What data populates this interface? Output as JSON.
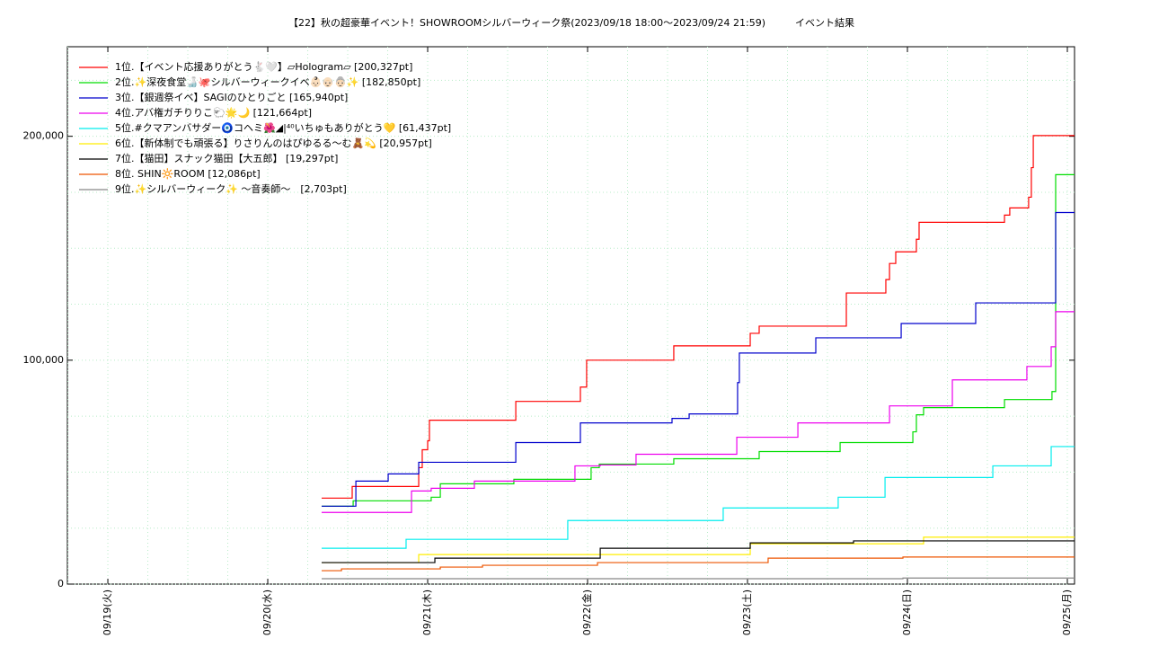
{
  "chart_data": {
    "type": "step",
    "title": "【22】秋の超豪華イベント！SHOWROOMシルバーウィーク祭(2023/09/18 18:00～2023/09/24 21:59)　　　イベント結果",
    "xlim": [
      -0.253,
      6.045
    ],
    "xticks": [
      {
        "value": 0,
        "label": "09/19(火)"
      },
      {
        "value": 1,
        "label": "09/20(水)"
      },
      {
        "value": 2,
        "label": "09/21(木)"
      },
      {
        "value": 3,
        "label": "09/22(金)"
      },
      {
        "value": 4,
        "label": "09/23(土)"
      },
      {
        "value": 5,
        "label": "09/24(日)"
      },
      {
        "value": 6,
        "label": "09/25(月)"
      }
    ],
    "minor_xticks": [
      -0.25,
      0.25,
      0.5,
      0.75,
      1.25,
      1.5,
      1.75,
      2.25,
      2.5,
      2.75,
      3.25,
      3.5,
      3.75,
      4.25,
      4.5,
      4.75,
      5.25,
      5.5,
      5.75
    ],
    "ylim": [
      0,
      240000
    ],
    "yticks": [
      0,
      {
        "value": 100000,
        "label": "100,000"
      },
      {
        "value": 200000,
        "label": "200,000"
      }
    ],
    "minor_yticks": [
      25000,
      50000,
      75000,
      125000,
      150000,
      175000,
      225000
    ],
    "grid": true,
    "legend": "upper left",
    "series": [
      {
        "name": "1位.【イベント応援ありがとう🐇🤍】▱Hologram▱ [200,327pt]",
        "color": "#ff0000",
        "x": [
          1.337,
          1.528,
          1.944,
          1.966,
          2.0,
          2.011,
          2.551,
          2.955,
          2.994,
          3.539,
          4.017,
          4.073,
          4.618,
          4.865,
          4.888,
          4.927,
          5.056,
          5.073,
          5.607,
          5.64,
          5.758,
          5.775,
          5.787
        ],
        "values": [
          38400,
          43600,
          52000,
          60000,
          64000,
          73200,
          81600,
          88000,
          100000,
          106400,
          112000,
          115200,
          130000,
          136000,
          143200,
          148400,
          154000,
          161600,
          164800,
          168000,
          172800,
          186000,
          200327
        ]
      },
      {
        "name": "2位.✨深夜食堂🍶🐙シルバーウィークイベ👶🏻👴🏻👵🏻✨ [182,850pt]",
        "color": "#00dd00",
        "x": [
          1.337,
          1.534,
          2.022,
          2.079,
          2.539,
          3.022,
          3.073,
          3.539,
          4.073,
          4.579,
          5.034,
          5.056,
          5.101,
          5.607,
          5.904,
          5.927
        ],
        "values": [
          34800,
          37200,
          38800,
          44800,
          46800,
          52000,
          53600,
          56000,
          59200,
          63200,
          68000,
          75600,
          78800,
          82400,
          86000,
          182850
        ]
      },
      {
        "name": "3位.【銀週祭イベ】SAGIのひとりごと [165,940pt]",
        "color": "#0000cc",
        "x": [
          1.337,
          1.551,
          1.753,
          1.944,
          2.551,
          2.955,
          3.528,
          3.635,
          3.938,
          3.949,
          4.427,
          4.961,
          5.427,
          5.927
        ],
        "values": [
          34800,
          46000,
          49200,
          54400,
          63200,
          72000,
          74000,
          76000,
          90000,
          103200,
          110000,
          116400,
          125600,
          165940
        ]
      },
      {
        "name": "4位.アバ権ガチりりこ🐑🌟🌙 [121,664pt]",
        "color": "#ee00ee",
        "x": [
          1.337,
          1.899,
          2.022,
          2.292,
          2.921,
          3.079,
          3.303,
          3.933,
          4.315,
          4.888,
          5.281,
          5.747,
          5.899,
          5.927
        ],
        "values": [
          32000,
          41600,
          42800,
          46000,
          52800,
          53200,
          58000,
          65600,
          72000,
          79600,
          91200,
          97200,
          106000,
          121664
        ]
      },
      {
        "name": "5位.#クマアンバサダー🧿コヘミ🌺◢|⁴⁰いちゅもありがとう💛 [61,437pt]",
        "color": "#00eeee",
        "x": [
          1.337,
          1.865,
          2.876,
          3.848,
          4.567,
          4.86,
          5.534,
          5.899
        ],
        "values": [
          16000,
          20000,
          28400,
          34000,
          38800,
          47600,
          52800,
          61437
        ]
      },
      {
        "name": "6位.【新体制でも頑張る】りさりんのはぴゆるる〜む🧸💫 [20,957pt]",
        "color": "#ffee00",
        "x": [
          1.337,
          1.944,
          4.017,
          5.101
        ],
        "values": [
          9600,
          13200,
          18000,
          20957
        ]
      },
      {
        "name": "7位.【猫田】スナック猫田【大五郎】 [19,297pt]",
        "color": "#000000",
        "x": [
          1.337,
          2.045,
          3.079,
          4.017,
          4.663
        ],
        "values": [
          9600,
          11600,
          16000,
          18400,
          19297
        ]
      },
      {
        "name": "8位. SHIN🔆ROOM [12,086pt]",
        "color": "#ee5500",
        "x": [
          1.337,
          1.461,
          2.079,
          2.343,
          3.062,
          4.129,
          4.972
        ],
        "values": [
          6000,
          6800,
          7600,
          8400,
          9600,
          11600,
          12086
        ]
      },
      {
        "name": "9位.✨シルバーウィーク✨ 〜音奏師〜　[2,703pt]",
        "color": "#888888",
        "x": [
          1.337,
          4.972
        ],
        "values": [
          2400,
          2703
        ]
      }
    ]
  }
}
